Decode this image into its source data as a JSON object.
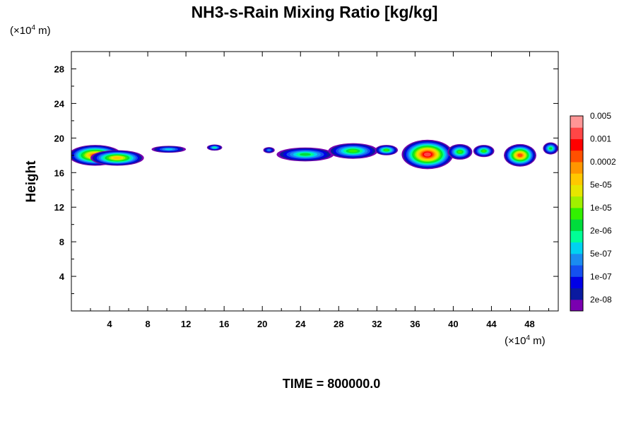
{
  "chart_data": {
    "type": "heatmap",
    "title": "NH3-s-Rain Mixing Ratio [kg/kg]",
    "ylabel": "Height",
    "x_unit": "(×10",
    "x_unit_exp": "4",
    "x_unit_suffix": " m)",
    "y_unit": "(×10",
    "y_unit_exp": "4",
    "y_unit_suffix": " m)",
    "xlim": [
      0,
      51
    ],
    "ylim": [
      0,
      30
    ],
    "x_ticks": [
      4,
      8,
      12,
      16,
      20,
      24,
      28,
      32,
      36,
      40,
      44,
      48
    ],
    "y_ticks": [
      4,
      8,
      12,
      16,
      20,
      24,
      28
    ],
    "time_label": "TIME = 800000.0",
    "colorbar": {
      "colors": [
        "#7a00b0",
        "#0a1aa0",
        "#0000e6",
        "#1450f0",
        "#1a8cf0",
        "#00d2f0",
        "#00ff96",
        "#00dc3c",
        "#32f000",
        "#a0f000",
        "#e6e600",
        "#ffc800",
        "#ff9600",
        "#ff5000",
        "#ff0000",
        "#ff4646",
        "#ff9696"
      ],
      "labels": [
        {
          "text": "2e-08",
          "index": 1
        },
        {
          "text": "1e-07",
          "index": 3
        },
        {
          "text": "5e-07",
          "index": 5
        },
        {
          "text": "2e-06",
          "index": 7
        },
        {
          "text": "1e-05",
          "index": 9
        },
        {
          "text": "5e-05",
          "index": 11
        },
        {
          "text": "0.0002",
          "index": 13
        },
        {
          "text": "0.001",
          "index": 15
        },
        {
          "text": "0.005",
          "index": 17
        }
      ]
    },
    "blobs": [
      {
        "cx": 2.5,
        "cy": 18.0,
        "rx": 2.8,
        "ry": 1.2,
        "level": 0.82
      },
      {
        "cx": 4.8,
        "cy": 17.7,
        "rx": 2.8,
        "ry": 0.9,
        "level": 0.72
      },
      {
        "cx": 10.2,
        "cy": 18.7,
        "rx": 1.8,
        "ry": 0.4,
        "level": 0.35
      },
      {
        "cx": 15.0,
        "cy": 18.9,
        "rx": 0.8,
        "ry": 0.35,
        "level": 0.4
      },
      {
        "cx": 20.7,
        "cy": 18.6,
        "rx": 0.6,
        "ry": 0.35,
        "level": 0.3
      },
      {
        "cx": 24.5,
        "cy": 18.1,
        "rx": 3.0,
        "ry": 0.8,
        "level": 0.45
      },
      {
        "cx": 29.5,
        "cy": 18.5,
        "rx": 2.6,
        "ry": 0.9,
        "level": 0.55
      },
      {
        "cx": 33.0,
        "cy": 18.6,
        "rx": 1.2,
        "ry": 0.6,
        "level": 0.5
      },
      {
        "cx": 37.3,
        "cy": 18.1,
        "rx": 2.7,
        "ry": 1.7,
        "level": 0.97
      },
      {
        "cx": 40.7,
        "cy": 18.4,
        "rx": 1.3,
        "ry": 0.9,
        "level": 0.55
      },
      {
        "cx": 43.2,
        "cy": 18.5,
        "rx": 1.1,
        "ry": 0.7,
        "level": 0.5
      },
      {
        "cx": 47.0,
        "cy": 18.0,
        "rx": 1.7,
        "ry": 1.3,
        "level": 0.85
      },
      {
        "cx": 50.2,
        "cy": 18.8,
        "rx": 0.8,
        "ry": 0.7,
        "level": 0.45
      }
    ]
  }
}
